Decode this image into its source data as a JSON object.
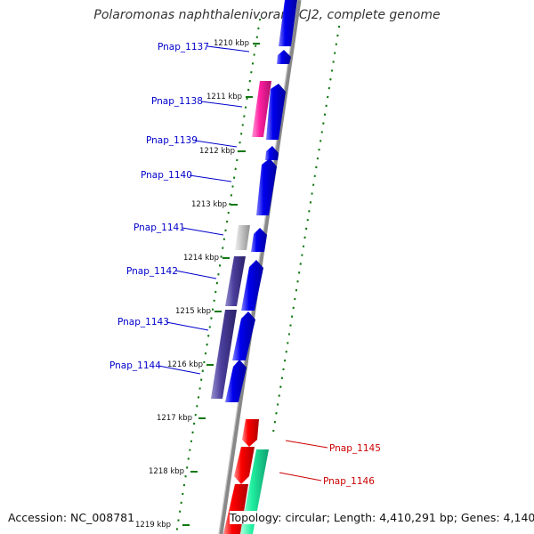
{
  "title": "Polaromonas naphthalenivorans CJ2, complete genome",
  "footer": {
    "accession": "Accession: NC_008781",
    "topology": "Topology: circular; Length: 4,410,291 bp; Genes: 4,140"
  },
  "colors": {
    "forward_cds": "#0a0ae6",
    "reverse_cds": "#ff1a1a",
    "label_left": "#0000cc",
    "label_right": "#cc0000",
    "dotted_ring": "#117711",
    "backbone": "#888888"
  },
  "ticks": [
    {
      "label": "1210 kbp"
    },
    {
      "label": "1211 kbp"
    },
    {
      "label": "1212 kbp"
    },
    {
      "label": "1213 kbp"
    },
    {
      "label": "1214 kbp"
    },
    {
      "label": "1215 kbp"
    },
    {
      "label": "1216 kbp"
    },
    {
      "label": "1217 kbp"
    },
    {
      "label": "1218 kbp"
    },
    {
      "label": "1219 kbp"
    }
  ],
  "genes_left": [
    {
      "name": "Pnap_1137"
    },
    {
      "name": "Pnap_1138"
    },
    {
      "name": "Pnap_1139"
    },
    {
      "name": "Pnap_1140"
    },
    {
      "name": "Pnap_1141"
    },
    {
      "name": "Pnap_1142"
    },
    {
      "name": "Pnap_1143"
    },
    {
      "name": "Pnap_1144"
    }
  ],
  "genes_right": [
    {
      "name": "Pnap_1145"
    },
    {
      "name": "Pnap_1146"
    }
  ]
}
